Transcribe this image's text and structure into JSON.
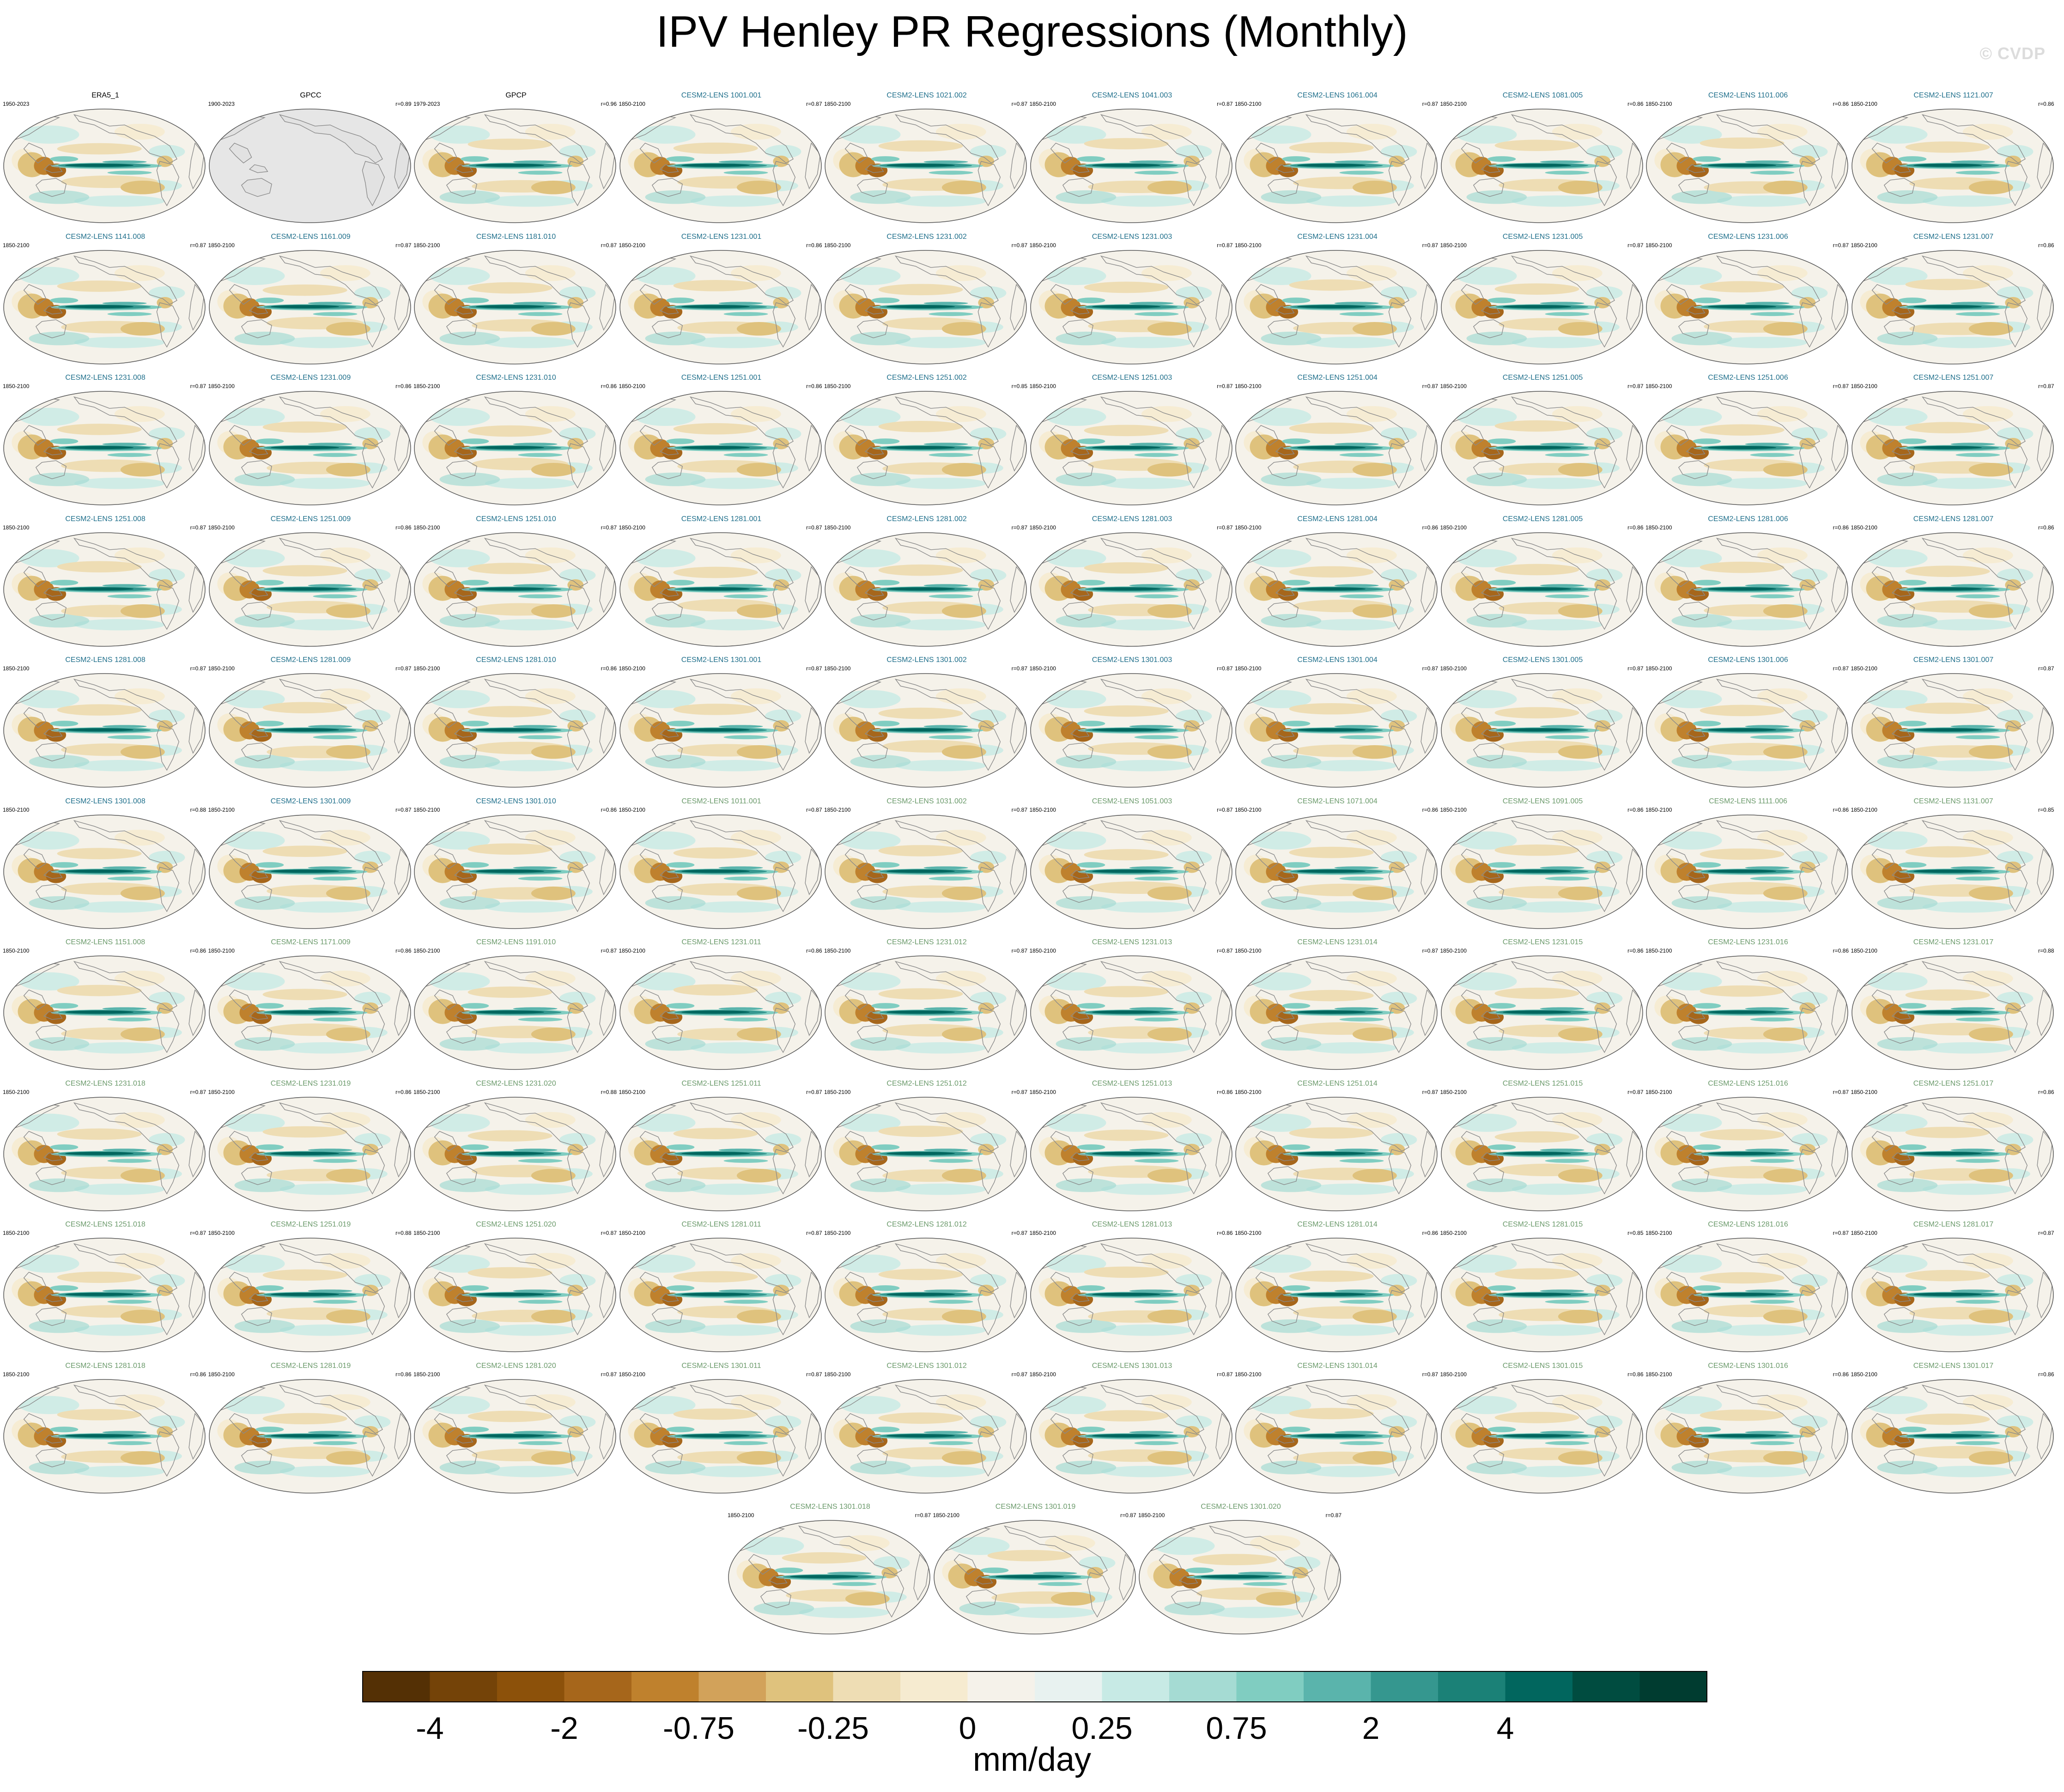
{
  "title": "IPV Henley PR Regressions (Monthly)",
  "watermark": "© CVDP",
  "colors": {
    "observations_title": "#000000",
    "smbb_title": "#1f6f8b",
    "macro_title": "#6b9a6b",
    "missing_data": "#e6e6e6",
    "coast": "#8a8a8a"
  },
  "panels": [
    {
      "name": "ERA5_1",
      "years": "1950-2023",
      "r": "",
      "group": "obs"
    },
    {
      "name": "GPCC",
      "years": "1900-2023",
      "r": "r=0.89",
      "group": "obs",
      "missing": true
    },
    {
      "name": "GPCP",
      "years": "1979-2023",
      "r": "r=0.96",
      "group": "obs"
    },
    {
      "name": "CESM2-LENS 1001.001",
      "years": "1850-2100",
      "r": "r=0.87",
      "group": "smbb"
    },
    {
      "name": "CESM2-LENS 1021.002",
      "years": "1850-2100",
      "r": "r=0.87",
      "group": "smbb"
    },
    {
      "name": "CESM2-LENS 1041.003",
      "years": "1850-2100",
      "r": "r=0.87",
      "group": "smbb"
    },
    {
      "name": "CESM2-LENS 1061.004",
      "years": "1850-2100",
      "r": "r=0.87",
      "group": "smbb"
    },
    {
      "name": "CESM2-LENS 1081.005",
      "years": "1850-2100",
      "r": "r=0.86",
      "group": "smbb"
    },
    {
      "name": "CESM2-LENS 1101.006",
      "years": "1850-2100",
      "r": "r=0.86",
      "group": "smbb"
    },
    {
      "name": "CESM2-LENS 1121.007",
      "years": "1850-2100",
      "r": "r=0.86",
      "group": "smbb"
    },
    {
      "name": "CESM2-LENS 1141.008",
      "years": "1850-2100",
      "r": "r=0.87",
      "group": "smbb"
    },
    {
      "name": "CESM2-LENS 1161.009",
      "years": "1850-2100",
      "r": "r=0.87",
      "group": "smbb"
    },
    {
      "name": "CESM2-LENS 1181.010",
      "years": "1850-2100",
      "r": "r=0.87",
      "group": "smbb"
    },
    {
      "name": "CESM2-LENS 1231.001",
      "years": "1850-2100",
      "r": "r=0.86",
      "group": "smbb"
    },
    {
      "name": "CESM2-LENS 1231.002",
      "years": "1850-2100",
      "r": "r=0.87",
      "group": "smbb"
    },
    {
      "name": "CESM2-LENS 1231.003",
      "years": "1850-2100",
      "r": "r=0.87",
      "group": "smbb"
    },
    {
      "name": "CESM2-LENS 1231.004",
      "years": "1850-2100",
      "r": "r=0.87",
      "group": "smbb"
    },
    {
      "name": "CESM2-LENS 1231.005",
      "years": "1850-2100",
      "r": "r=0.87",
      "group": "smbb"
    },
    {
      "name": "CESM2-LENS 1231.006",
      "years": "1850-2100",
      "r": "r=0.87",
      "group": "smbb"
    },
    {
      "name": "CESM2-LENS 1231.007",
      "years": "1850-2100",
      "r": "r=0.86",
      "group": "smbb"
    },
    {
      "name": "CESM2-LENS 1231.008",
      "years": "1850-2100",
      "r": "r=0.87",
      "group": "smbb"
    },
    {
      "name": "CESM2-LENS 1231.009",
      "years": "1850-2100",
      "r": "r=0.86",
      "group": "smbb"
    },
    {
      "name": "CESM2-LENS 1231.010",
      "years": "1850-2100",
      "r": "r=0.86",
      "group": "smbb"
    },
    {
      "name": "CESM2-LENS 1251.001",
      "years": "1850-2100",
      "r": "r=0.86",
      "group": "smbb"
    },
    {
      "name": "CESM2-LENS 1251.002",
      "years": "1850-2100",
      "r": "r=0.85",
      "group": "smbb"
    },
    {
      "name": "CESM2-LENS 1251.003",
      "years": "1850-2100",
      "r": "r=0.87",
      "group": "smbb"
    },
    {
      "name": "CESM2-LENS 1251.004",
      "years": "1850-2100",
      "r": "r=0.87",
      "group": "smbb"
    },
    {
      "name": "CESM2-LENS 1251.005",
      "years": "1850-2100",
      "r": "r=0.87",
      "group": "smbb"
    },
    {
      "name": "CESM2-LENS 1251.006",
      "years": "1850-2100",
      "r": "r=0.87",
      "group": "smbb"
    },
    {
      "name": "CESM2-LENS 1251.007",
      "years": "1850-2100",
      "r": "r=0.87",
      "group": "smbb"
    },
    {
      "name": "CESM2-LENS 1251.008",
      "years": "1850-2100",
      "r": "r=0.87",
      "group": "smbb"
    },
    {
      "name": "CESM2-LENS 1251.009",
      "years": "1850-2100",
      "r": "r=0.86",
      "group": "smbb"
    },
    {
      "name": "CESM2-LENS 1251.010",
      "years": "1850-2100",
      "r": "r=0.87",
      "group": "smbb"
    },
    {
      "name": "CESM2-LENS 1281.001",
      "years": "1850-2100",
      "r": "r=0.87",
      "group": "smbb"
    },
    {
      "name": "CESM2-LENS 1281.002",
      "years": "1850-2100",
      "r": "r=0.87",
      "group": "smbb"
    },
    {
      "name": "CESM2-LENS 1281.003",
      "years": "1850-2100",
      "r": "r=0.87",
      "group": "smbb"
    },
    {
      "name": "CESM2-LENS 1281.004",
      "years": "1850-2100",
      "r": "r=0.86",
      "group": "smbb"
    },
    {
      "name": "CESM2-LENS 1281.005",
      "years": "1850-2100",
      "r": "r=0.86",
      "group": "smbb"
    },
    {
      "name": "CESM2-LENS 1281.006",
      "years": "1850-2100",
      "r": "r=0.86",
      "group": "smbb"
    },
    {
      "name": "CESM2-LENS 1281.007",
      "years": "1850-2100",
      "r": "r=0.86",
      "group": "smbb"
    },
    {
      "name": "CESM2-LENS 1281.008",
      "years": "1850-2100",
      "r": "r=0.87",
      "group": "smbb"
    },
    {
      "name": "CESM2-LENS 1281.009",
      "years": "1850-2100",
      "r": "r=0.87",
      "group": "smbb"
    },
    {
      "name": "CESM2-LENS 1281.010",
      "years": "1850-2100",
      "r": "r=0.86",
      "group": "smbb"
    },
    {
      "name": "CESM2-LENS 1301.001",
      "years": "1850-2100",
      "r": "r=0.87",
      "group": "smbb"
    },
    {
      "name": "CESM2-LENS 1301.002",
      "years": "1850-2100",
      "r": "r=0.87",
      "group": "smbb"
    },
    {
      "name": "CESM2-LENS 1301.003",
      "years": "1850-2100",
      "r": "r=0.87",
      "group": "smbb"
    },
    {
      "name": "CESM2-LENS 1301.004",
      "years": "1850-2100",
      "r": "r=0.87",
      "group": "smbb"
    },
    {
      "name": "CESM2-LENS 1301.005",
      "years": "1850-2100",
      "r": "r=0.87",
      "group": "smbb"
    },
    {
      "name": "CESM2-LENS 1301.006",
      "years": "1850-2100",
      "r": "r=0.87",
      "group": "smbb"
    },
    {
      "name": "CESM2-LENS 1301.007",
      "years": "1850-2100",
      "r": "r=0.87",
      "group": "smbb"
    },
    {
      "name": "CESM2-LENS 1301.008",
      "years": "1850-2100",
      "r": "r=0.88",
      "group": "smbb"
    },
    {
      "name": "CESM2-LENS 1301.009",
      "years": "1850-2100",
      "r": "r=0.87",
      "group": "smbb"
    },
    {
      "name": "CESM2-LENS 1301.010",
      "years": "1850-2100",
      "r": "r=0.86",
      "group": "smbb"
    },
    {
      "name": "CESM2-LENS 1011.001",
      "years": "1850-2100",
      "r": "r=0.87",
      "group": "macro"
    },
    {
      "name": "CESM2-LENS 1031.002",
      "years": "1850-2100",
      "r": "r=0.87",
      "group": "macro"
    },
    {
      "name": "CESM2-LENS 1051.003",
      "years": "1850-2100",
      "r": "r=0.87",
      "group": "macro"
    },
    {
      "name": "CESM2-LENS 1071.004",
      "years": "1850-2100",
      "r": "r=0.86",
      "group": "macro"
    },
    {
      "name": "CESM2-LENS 1091.005",
      "years": "1850-2100",
      "r": "r=0.86",
      "group": "macro"
    },
    {
      "name": "CESM2-LENS 1111.006",
      "years": "1850-2100",
      "r": "r=0.86",
      "group": "macro"
    },
    {
      "name": "CESM2-LENS 1131.007",
      "years": "1850-2100",
      "r": "r=0.85",
      "group": "macro"
    },
    {
      "name": "CESM2-LENS 1151.008",
      "years": "1850-2100",
      "r": "r=0.86",
      "group": "macro"
    },
    {
      "name": "CESM2-LENS 1171.009",
      "years": "1850-2100",
      "r": "r=0.86",
      "group": "macro"
    },
    {
      "name": "CESM2-LENS 1191.010",
      "years": "1850-2100",
      "r": "r=0.87",
      "group": "macro"
    },
    {
      "name": "CESM2-LENS 1231.011",
      "years": "1850-2100",
      "r": "r=0.86",
      "group": "macro"
    },
    {
      "name": "CESM2-LENS 1231.012",
      "years": "1850-2100",
      "r": "r=0.87",
      "group": "macro"
    },
    {
      "name": "CESM2-LENS 1231.013",
      "years": "1850-2100",
      "r": "r=0.87",
      "group": "macro"
    },
    {
      "name": "CESM2-LENS 1231.014",
      "years": "1850-2100",
      "r": "r=0.87",
      "group": "macro"
    },
    {
      "name": "CESM2-LENS 1231.015",
      "years": "1850-2100",
      "r": "r=0.86",
      "group": "macro"
    },
    {
      "name": "CESM2-LENS 1231.016",
      "years": "1850-2100",
      "r": "r=0.86",
      "group": "macro"
    },
    {
      "name": "CESM2-LENS 1231.017",
      "years": "1850-2100",
      "r": "r=0.88",
      "group": "macro"
    },
    {
      "name": "CESM2-LENS 1231.018",
      "years": "1850-2100",
      "r": "r=0.87",
      "group": "macro"
    },
    {
      "name": "CESM2-LENS 1231.019",
      "years": "1850-2100",
      "r": "r=0.86",
      "group": "macro"
    },
    {
      "name": "CESM2-LENS 1231.020",
      "years": "1850-2100",
      "r": "r=0.88",
      "group": "macro"
    },
    {
      "name": "CESM2-LENS 1251.011",
      "years": "1850-2100",
      "r": "r=0.87",
      "group": "macro"
    },
    {
      "name": "CESM2-LENS 1251.012",
      "years": "1850-2100",
      "r": "r=0.87",
      "group": "macro"
    },
    {
      "name": "CESM2-LENS 1251.013",
      "years": "1850-2100",
      "r": "r=0.86",
      "group": "macro"
    },
    {
      "name": "CESM2-LENS 1251.014",
      "years": "1850-2100",
      "r": "r=0.87",
      "group": "macro"
    },
    {
      "name": "CESM2-LENS 1251.015",
      "years": "1850-2100",
      "r": "r=0.87",
      "group": "macro"
    },
    {
      "name": "CESM2-LENS 1251.016",
      "years": "1850-2100",
      "r": "r=0.87",
      "group": "macro"
    },
    {
      "name": "CESM2-LENS 1251.017",
      "years": "1850-2100",
      "r": "r=0.86",
      "group": "macro"
    },
    {
      "name": "CESM2-LENS 1251.018",
      "years": "1850-2100",
      "r": "r=0.87",
      "group": "macro"
    },
    {
      "name": "CESM2-LENS 1251.019",
      "years": "1850-2100",
      "r": "r=0.88",
      "group": "macro"
    },
    {
      "name": "CESM2-LENS 1251.020",
      "years": "1850-2100",
      "r": "r=0.87",
      "group": "macro"
    },
    {
      "name": "CESM2-LENS 1281.011",
      "years": "1850-2100",
      "r": "r=0.87",
      "group": "macro"
    },
    {
      "name": "CESM2-LENS 1281.012",
      "years": "1850-2100",
      "r": "r=0.87",
      "group": "macro"
    },
    {
      "name": "CESM2-LENS 1281.013",
      "years": "1850-2100",
      "r": "r=0.86",
      "group": "macro"
    },
    {
      "name": "CESM2-LENS 1281.014",
      "years": "1850-2100",
      "r": "r=0.86",
      "group": "macro"
    },
    {
      "name": "CESM2-LENS 1281.015",
      "years": "1850-2100",
      "r": "r=0.85",
      "group": "macro"
    },
    {
      "name": "CESM2-LENS 1281.016",
      "years": "1850-2100",
      "r": "r=0.87",
      "group": "macro"
    },
    {
      "name": "CESM2-LENS 1281.017",
      "years": "1850-2100",
      "r": "r=0.87",
      "group": "macro"
    },
    {
      "name": "CESM2-LENS 1281.018",
      "years": "1850-2100",
      "r": "r=0.86",
      "group": "macro"
    },
    {
      "name": "CESM2-LENS 1281.019",
      "years": "1850-2100",
      "r": "r=0.86",
      "group": "macro"
    },
    {
      "name": "CESM2-LENS 1281.020",
      "years": "1850-2100",
      "r": "r=0.87",
      "group": "macro"
    },
    {
      "name": "CESM2-LENS 1301.011",
      "years": "1850-2100",
      "r": "r=0.87",
      "group": "macro"
    },
    {
      "name": "CESM2-LENS 1301.012",
      "years": "1850-2100",
      "r": "r=0.87",
      "group": "macro"
    },
    {
      "name": "CESM2-LENS 1301.013",
      "years": "1850-2100",
      "r": "r=0.87",
      "group": "macro"
    },
    {
      "name": "CESM2-LENS 1301.014",
      "years": "1850-2100",
      "r": "r=0.87",
      "group": "macro"
    },
    {
      "name": "CESM2-LENS 1301.015",
      "years": "1850-2100",
      "r": "r=0.86",
      "group": "macro"
    },
    {
      "name": "CESM2-LENS 1301.016",
      "years": "1850-2100",
      "r": "r=0.86",
      "group": "macro"
    },
    {
      "name": "CESM2-LENS 1301.017",
      "years": "1850-2100",
      "r": "r=0.86",
      "group": "macro"
    },
    {
      "name": "CESM2-LENS 1301.018",
      "years": "1850-2100",
      "r": "r=0.87",
      "group": "macro"
    },
    {
      "name": "CESM2-LENS 1301.019",
      "years": "1850-2100",
      "r": "r=0.87",
      "group": "macro"
    },
    {
      "name": "CESM2-LENS 1301.020",
      "years": "1850-2100",
      "r": "r=0.87",
      "group": "macro"
    }
  ],
  "chart_data": {
    "type": "heatmap",
    "title": "IPV Henley PR Regressions (Monthly)",
    "panel_count": 103,
    "colorbar": {
      "units": "mm/day",
      "tick_labels": [
        "-4",
        "-2",
        "-0.75",
        "-0.25",
        "0",
        "0.25",
        "0.75",
        "2",
        "4"
      ],
      "levels": [
        -5,
        -4,
        -3,
        -2,
        -1,
        -0.75,
        -0.5,
        -0.25,
        -0.1,
        0,
        0.1,
        0.25,
        0.5,
        0.75,
        1,
        2,
        3,
        4,
        5
      ],
      "colors": [
        "#543005",
        "#744308",
        "#8c510a",
        "#a6661b",
        "#bf812d",
        "#d2a25a",
        "#dfc27d",
        "#eeddb4",
        "#f6ebd0",
        "#f5f2ea",
        "#e8f2f0",
        "#c7eae5",
        "#a5dbd3",
        "#80cdc1",
        "#5ab4ac",
        "#35978f",
        "#1b8177",
        "#01665e",
        "#004c40",
        "#003c30"
      ]
    }
  }
}
